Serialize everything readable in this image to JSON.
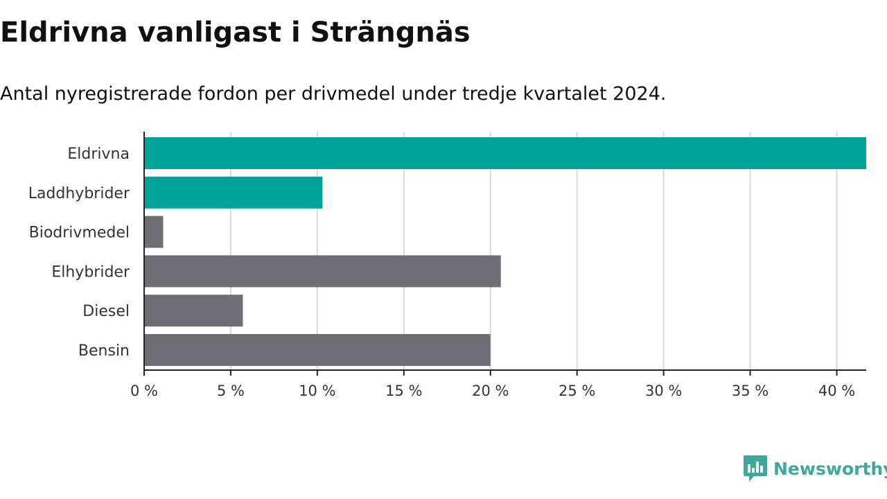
{
  "title": "Eldrivna vanligast i Strängnäs",
  "subtitle": "Antal nyregistrerade fordon per drivmedel under tredje kvartalet 2024.",
  "brand": {
    "name": "Newsworthy",
    "color": "#3fa79c",
    "icon": "newsworthy-chat-chart-icon"
  },
  "colors": {
    "highlight": "#00a398",
    "default": "#6f6e74",
    "grid": "#d9d9d9",
    "axis": "#222222"
  },
  "chart_data": {
    "type": "bar",
    "orientation": "horizontal",
    "categories": [
      "Eldrivna",
      "Laddhybrider",
      "Biodrivmedel",
      "Elhybrider",
      "Diesel",
      "Bensin"
    ],
    "values": [
      41.7,
      10.3,
      1.1,
      20.6,
      5.7,
      20.0
    ],
    "highlighted": [
      true,
      true,
      false,
      false,
      false,
      false
    ],
    "xlim": [
      0,
      41.7
    ],
    "x_ticks": [
      0,
      5,
      10,
      15,
      20,
      25,
      30,
      35,
      40
    ],
    "x_tick_labels": [
      "0 %",
      "5 %",
      "10 %",
      "15 %",
      "20 %",
      "25 %",
      "30 %",
      "35 %",
      "40 %"
    ],
    "xlabel": "",
    "ylabel": "",
    "grid": "vertical",
    "legend": "none"
  }
}
